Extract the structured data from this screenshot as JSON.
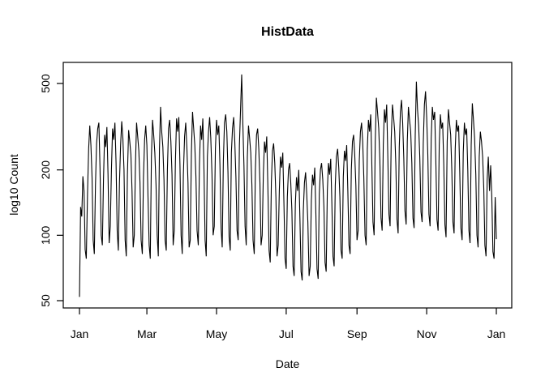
{
  "chart_data": {
    "type": "line",
    "title": "HistData",
    "xlabel": "Date",
    "ylabel": "log10 Count",
    "y_scale": "log10",
    "y_ticks": [
      50,
      100,
      200,
      500
    ],
    "ylim": [
      46,
      625
    ],
    "x_tick_labels": [
      "Jan",
      "Mar",
      "May",
      "Jul",
      "Sep",
      "Nov",
      "Jan"
    ],
    "x_tick_days": [
      0,
      59,
      120,
      181,
      243,
      304,
      365
    ],
    "x_unit": "day of year (daily series, one full year)",
    "grid": false,
    "legend": "none",
    "line_color": "#000000",
    "axis_color": "#000000",
    "background_color": "#ffffff",
    "series": [
      {
        "name": "HistData",
        "start_day": 0,
        "values": [
          52,
          135,
          122,
          187,
          160,
          86,
          78,
          155,
          250,
          320,
          260,
          185,
          95,
          82,
          170,
          265,
          310,
          330,
          205,
          100,
          90,
          180,
          290,
          255,
          315,
          190,
          92,
          110,
          200,
          310,
          275,
          330,
          215,
          105,
          85,
          175,
          260,
          335,
          280,
          200,
          95,
          80,
          190,
          305,
          270,
          235,
          160,
          88,
          100,
          210,
          330,
          285,
          245,
          175,
          95,
          82,
          185,
          275,
          320,
          260,
          150,
          90,
          78,
          230,
          340,
          290,
          240,
          170,
          100,
          80,
          250,
          390,
          300,
          255,
          180,
          95,
          85,
          200,
          310,
          340,
          270,
          190,
          90,
          105,
          220,
          345,
          300,
          350,
          210,
          100,
          82,
          190,
          285,
          330,
          255,
          175,
          88,
          95,
          240,
          370,
          310,
          260,
          185,
          105,
          90,
          210,
          320,
          275,
          345,
          200,
          95,
          80,
          230,
          300,
          350,
          280,
          190,
          100,
          110,
          250,
          340,
          290,
          320,
          210,
          108,
          88,
          220,
          330,
          360,
          300,
          195,
          98,
          85,
          240,
          310,
          350,
          270,
          185,
          105,
          95,
          260,
          380,
          550,
          330,
          210,
          110,
          90,
          230,
          320,
          280,
          240,
          170,
          95,
          82,
          200,
          290,
          310,
          250,
          175,
          90,
          100,
          190,
          270,
          240,
          285,
          160,
          85,
          75,
          175,
          245,
          265,
          215,
          150,
          80,
          90,
          160,
          230,
          205,
          240,
          140,
          78,
          70,
          150,
          200,
          215,
          175,
          130,
          72,
          65,
          140,
          185,
          160,
          200,
          120,
          68,
          62,
          130,
          175,
          195,
          155,
          115,
          65,
          72,
          145,
          190,
          170,
          205,
          125,
          70,
          63,
          155,
          200,
          215,
          180,
          135,
          75,
          68,
          160,
          215,
          190,
          225,
          140,
          80,
          72,
          170,
          230,
          250,
          205,
          150,
          85,
          78,
          185,
          245,
          220,
          260,
          160,
          90,
          82,
          200,
          270,
          290,
          235,
          170,
          95,
          105,
          220,
          300,
          330,
          270,
          185,
          100,
          90,
          250,
          340,
          300,
          360,
          210,
          115,
          100,
          270,
          430,
          370,
          310,
          220,
          120,
          105,
          260,
          380,
          330,
          400,
          230,
          125,
          110,
          280,
          400,
          350,
          300,
          210,
          118,
          102,
          255,
          370,
          420,
          330,
          225,
          130,
          112,
          270,
          390,
          340,
          300,
          215,
          120,
          108,
          290,
          510,
          380,
          320,
          230,
          128,
          115,
          265,
          400,
          460,
          350,
          235,
          125,
          110,
          280,
          390,
          340,
          370,
          220,
          118,
          105,
          260,
          360,
          310,
          330,
          210,
          112,
          98,
          270,
          380,
          330,
          290,
          200,
          115,
          102,
          250,
          340,
          300,
          320,
          195,
          108,
          95,
          240,
          330,
          290,
          310,
          200,
          105,
          92,
          260,
          405,
          340,
          280,
          190,
          100,
          88,
          230,
          300,
          270,
          230,
          165,
          90,
          80,
          180,
          230,
          160,
          210,
          150,
          84,
          78,
          150,
          96
        ]
      }
    ]
  }
}
